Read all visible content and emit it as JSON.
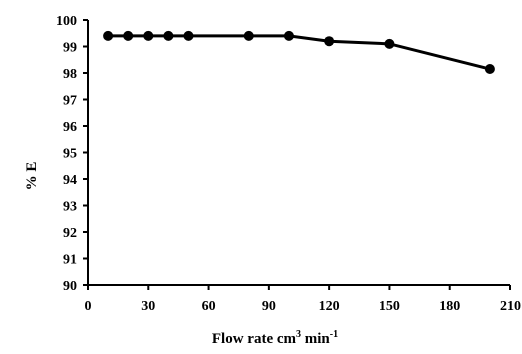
{
  "chart_data": {
    "type": "line",
    "title": "",
    "xlabel_main": "Flow rate cm",
    "xlabel_sup1": "3",
    "xlabel_mid": " min",
    "xlabel_sup2": "-1",
    "ylabel": "% E",
    "xlim": [
      0,
      210
    ],
    "ylim": [
      90,
      100
    ],
    "xticks": [
      0,
      30,
      60,
      90,
      120,
      150,
      180,
      210
    ],
    "xtick_labels": [
      "0",
      "30",
      "60",
      "90",
      "120",
      "150",
      "180",
      "210"
    ],
    "yticks": [
      90,
      91,
      92,
      93,
      94,
      95,
      96,
      97,
      98,
      99,
      100
    ],
    "ytick_labels": [
      "90",
      "91",
      "92",
      "93",
      "94",
      "95",
      "96",
      "97",
      "98",
      "99",
      "100"
    ],
    "grid": false,
    "series": [
      {
        "x": [
          10,
          20,
          30,
          40,
          50,
          80,
          100,
          120,
          150,
          200
        ],
        "y": [
          99.4,
          99.4,
          99.4,
          99.4,
          99.4,
          99.4,
          99.4,
          99.2,
          99.1,
          98.15
        ],
        "color": "#000000"
      }
    ]
  }
}
